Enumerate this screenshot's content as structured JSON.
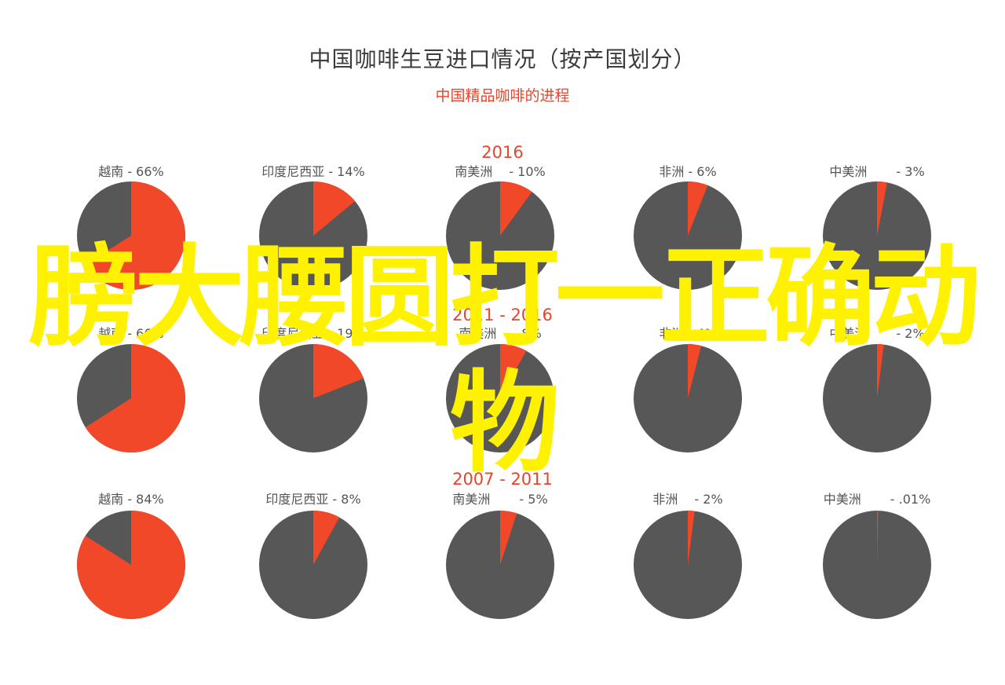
{
  "title": "中国咖啡生豆进口情况（按产国划分）",
  "subtitle": "中国精品咖啡的进程",
  "colors": {
    "share": "#f2482a",
    "rest": "#575757",
    "period_label": "#e8452c",
    "pie_label": "#555555",
    "overlay": "#fff200"
  },
  "overlay_text": "膀大腰圆打一正确动物",
  "chart_data": [
    {
      "type": "pie",
      "period": "2016",
      "pies": [
        {
          "label": "越南 - 66%",
          "value": 66
        },
        {
          "label": "印度尼西亚 - 14%",
          "value": 14
        },
        {
          "label": "南美洲　 - 10%",
          "value": 10
        },
        {
          "label": "非洲 - 6%",
          "value": 6
        },
        {
          "label": "中美洲　　 - 3%",
          "value": 3
        }
      ]
    },
    {
      "type": "pie",
      "period": "2011 - 2016",
      "pies": [
        {
          "label": "越南 - 66%",
          "value": 66
        },
        {
          "label": "印度尼西亚 - 19%",
          "value": 19
        },
        {
          "label": "南美洲　 - 8%",
          "value": 8
        },
        {
          "label": "非洲 - 4%",
          "value": 4
        },
        {
          "label": "中美洲　　 - 2%",
          "value": 2
        }
      ]
    },
    {
      "type": "pie",
      "period": "2007 - 2011",
      "pies": [
        {
          "label": "越南 - 84%",
          "value": 84
        },
        {
          "label": "印度尼西亚 - 8%",
          "value": 8
        },
        {
          "label": "南美洲　　 - 5%",
          "value": 5
        },
        {
          "label": "非洲　 - 2%",
          "value": 2
        },
        {
          "label": "中美洲　　 - .01%",
          "value": 0.01
        }
      ]
    }
  ]
}
